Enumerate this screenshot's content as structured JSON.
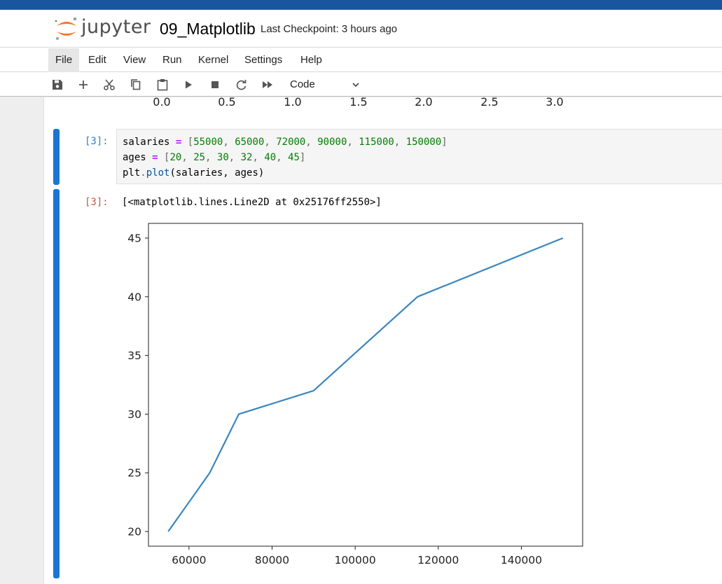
{
  "header": {
    "brand": "jupyter",
    "notebook_title": "09_Matplotlib",
    "checkpoint": "Last Checkpoint: 3 hours ago",
    "logo_color": "#f37726"
  },
  "menu": {
    "items": [
      {
        "label": "File",
        "active": true
      },
      {
        "label": "Edit"
      },
      {
        "label": "View"
      },
      {
        "label": "Run"
      },
      {
        "label": "Kernel"
      },
      {
        "label": "Settings"
      },
      {
        "label": "Help"
      }
    ]
  },
  "toolbar": {
    "icons": [
      "save-icon",
      "add-cell-icon",
      "cut-icon",
      "copy-icon",
      "paste-icon",
      "run-icon",
      "stop-icon",
      "restart-icon",
      "fast-forward-icon"
    ],
    "cell_type": "Code"
  },
  "previous_output": {
    "x_tick_labels": [
      "0.0",
      "0.5",
      "1.0",
      "1.5",
      "2.0",
      "2.5",
      "3.0"
    ]
  },
  "cell": {
    "input_prompt": "[3]:",
    "output_prompt": "[3]:",
    "code": {
      "line1": {
        "name": "salaries",
        "op": "=",
        "values": [
          "55000",
          "65000",
          "72000",
          "90000",
          "115000",
          "150000"
        ]
      },
      "line2": {
        "name": "ages",
        "op": "=",
        "values": [
          "20",
          "25",
          "30",
          "32",
          "40",
          "45"
        ]
      },
      "line3": {
        "obj": "plt",
        "method": "plot",
        "args": "(salaries, ages)"
      }
    },
    "output_text": "[<matplotlib.lines.Line2D at 0x25176ff2550>]",
    "accent_color": "#1976d2"
  },
  "chart_data": {
    "type": "line",
    "x": [
      55000,
      65000,
      72000,
      90000,
      115000,
      150000
    ],
    "y": [
      20,
      25,
      30,
      32,
      40,
      45
    ],
    "series_color": "#3a86c0",
    "x_ticks": [
      60000,
      80000,
      100000,
      120000,
      140000
    ],
    "y_ticks": [
      20,
      25,
      30,
      35,
      40,
      45
    ],
    "xlim": [
      50250,
      154750
    ],
    "ylim": [
      18.75,
      46.25
    ],
    "grid": false
  }
}
